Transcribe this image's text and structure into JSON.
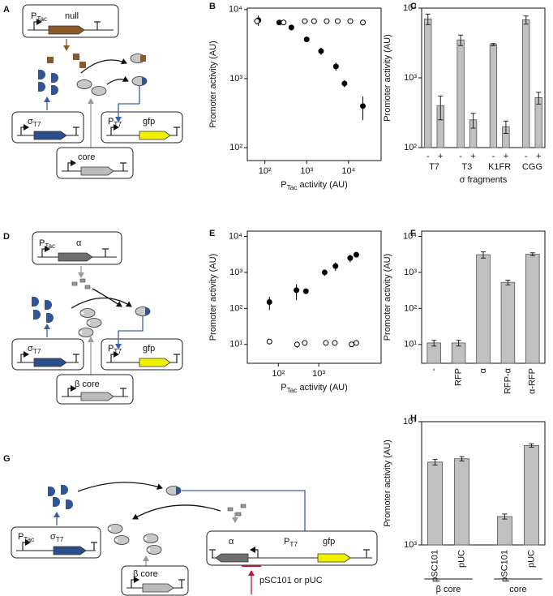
{
  "diagrams": [
    {
      "panel": "A",
      "promoter": [
        {
          "text": "P"
        },
        {
          "text": "Tac",
          "sub": true
        }
      ],
      "gene": "null",
      "sigma": [
        {
          "text": "σ"
        },
        {
          "text": "T7",
          "sub": true
        }
      ],
      "core": "core",
      "target": [
        {
          "text": "P"
        },
        {
          "text": "T7",
          "sub": true
        }
      ],
      "reporter": "gfp"
    },
    {
      "panel": "D",
      "promoter": [
        {
          "text": "P"
        },
        {
          "text": "Tac",
          "sub": true
        }
      ],
      "gene": "α",
      "sigma": [
        {
          "text": "σ"
        },
        {
          "text": "T7",
          "sub": true
        }
      ],
      "core": "β core",
      "target": [
        {
          "text": "P"
        },
        {
          "text": "T7",
          "sub": true
        }
      ],
      "reporter": "gfp"
    },
    {
      "panel": "G",
      "promoter": [
        {
          "text": "P"
        },
        {
          "text": "Tac",
          "sub": true
        }
      ],
      "sigma": [
        {
          "text": "σ"
        },
        {
          "text": "T7",
          "sub": true
        }
      ],
      "inhibitor": "α",
      "target": [
        {
          "text": "P"
        },
        {
          "text": "T7",
          "sub": true
        }
      ],
      "reporter": "gfp",
      "core": "β core",
      "plasmid": "pSC101 or pUC"
    }
  ],
  "chart_data": [
    {
      "panel": "B",
      "type": "scatter",
      "ylabel": "Promoter activity (AU)",
      "xlabel": [
        {
          "text": "P"
        },
        {
          "text": "Tac",
          "sub": true
        },
        {
          "text": " activity (AU)"
        }
      ],
      "xlog": true,
      "ylog": true,
      "xlim": [
        38,
        60000
      ],
      "ylim": [
        65,
        10500
      ],
      "xticks": [
        {
          "value": 100,
          "label": "10²"
        },
        {
          "value": 1000,
          "label": "10³"
        },
        {
          "value": 10000,
          "label": "10⁴"
        }
      ],
      "yticks": [
        {
          "value": 100,
          "label": "10²"
        },
        {
          "value": 1000,
          "label": "10³"
        },
        {
          "value": 10000,
          "label": "10⁴"
        }
      ],
      "series": [
        {
          "color": "#000000",
          "filled": true,
          "x": [
            70,
            220,
            430,
            1000,
            2200,
            5000,
            8000,
            22000
          ],
          "values": [
            7000,
            6500,
            5500,
            3700,
            2500,
            1500,
            850,
            400
          ],
          "errors": [
            1200,
            500,
            500,
            300,
            300,
            200,
            100,
            150
          ]
        },
        {
          "color": "#000000",
          "filled": false,
          "x": [
            65,
            280,
            900,
            1500,
            3000,
            5500,
            11000,
            22000
          ],
          "values": [
            6800,
            6500,
            6800,
            6800,
            6800,
            6800,
            6800,
            6500
          ],
          "errors": [
            700,
            400,
            400,
            400,
            400,
            400,
            400,
            600
          ]
        }
      ]
    },
    {
      "panel": "C",
      "type": "bar",
      "ylabel": "Promoter activity (AU)",
      "xlabel": "σ fragments",
      "ylog": true,
      "ylim": [
        100,
        10000
      ],
      "yticks": [
        {
          "value": 100,
          "label": "10²"
        },
        {
          "value": 1000,
          "label": "10³"
        },
        {
          "value": 10000,
          "label": "10⁴"
        }
      ],
      "categories": [
        "-",
        "+",
        "-",
        "+",
        "-",
        "+",
        "-",
        "+"
      ],
      "groups": [
        "T7",
        "T3",
        "K1FR",
        "CGG"
      ],
      "group_lines": false,
      "vertical_labels": false,
      "color": "#c0c0c0",
      "values": [
        7000,
        400,
        3500,
        250,
        3000,
        200,
        6800,
        520
      ],
      "errors": [
        1200,
        150,
        600,
        60,
        100,
        40,
        900,
        100
      ]
    },
    {
      "panel": "E",
      "type": "scatter",
      "ylabel": "Promoter activity (AU)",
      "xlabel": [
        {
          "text": "P"
        },
        {
          "text": "Tac",
          "sub": true
        },
        {
          "text": " activity (AU)"
        }
      ],
      "xlog": true,
      "ylog": true,
      "xlim": [
        17,
        35000
      ],
      "ylim": [
        3,
        14000
      ],
      "xticks": [
        {
          "value": 100,
          "label": "10²"
        },
        {
          "value": 1000,
          "label": "10³"
        }
      ],
      "yticks": [
        {
          "value": 10,
          "label": "10¹"
        },
        {
          "value": 100,
          "label": "10²"
        },
        {
          "value": 1000,
          "label": "10³"
        },
        {
          "value": 10000,
          "label": "10⁴"
        }
      ],
      "series": [
        {
          "color": "#000000",
          "filled": true,
          "x": [
            60,
            280,
            480,
            1400,
            2600,
            6000,
            8500
          ],
          "values": [
            150,
            320,
            300,
            1000,
            1500,
            2500,
            3100
          ],
          "errors": [
            60,
            150,
            30,
            200,
            400,
            600,
            400
          ]
        },
        {
          "color": "#000000",
          "filled": false,
          "x": [
            60,
            290,
            450,
            1500,
            2500,
            6500,
            8500
          ],
          "values": [
            12,
            10,
            11,
            11,
            11,
            10,
            11
          ],
          "errors": [
            1,
            2,
            1,
            1,
            1,
            1,
            1
          ]
        }
      ]
    },
    {
      "panel": "F",
      "type": "bar",
      "ylabel": "Promoter activity (AU)",
      "ylog": true,
      "ylim": [
        3,
        14000
      ],
      "yticks": [
        {
          "value": 10,
          "label": "10¹"
        },
        {
          "value": 100,
          "label": "10²"
        },
        {
          "value": 1000,
          "label": "10³"
        },
        {
          "value": 10000,
          "label": "10⁴"
        }
      ],
      "categories": [
        "-",
        "RFP",
        "α",
        "RFP-α",
        "α-RFP"
      ],
      "vertical_labels": true,
      "color": "#c0c0c0",
      "values": [
        11,
        11,
        3100,
        530,
        3200
      ],
      "errors": [
        2,
        2,
        600,
        80,
        300
      ]
    },
    {
      "panel": "H",
      "type": "bar",
      "ylabel": "Promoter activity (AU)",
      "ylog": true,
      "ylim": [
        1000,
        10000
      ],
      "yticks": [
        {
          "value": 1000,
          "label": "10³"
        },
        {
          "value": 10000,
          "label": "10⁴"
        }
      ],
      "categories": [
        "pSC101",
        "pUC",
        "pSC101",
        "pUC"
      ],
      "groups": [
        "β core",
        "core"
      ],
      "group_lines": true,
      "vertical_labels": true,
      "color": "#c0c0c0",
      "values": [
        4700,
        5000,
        1700,
        6400
      ],
      "errors": [
        250,
        200,
        80,
        200
      ]
    }
  ]
}
